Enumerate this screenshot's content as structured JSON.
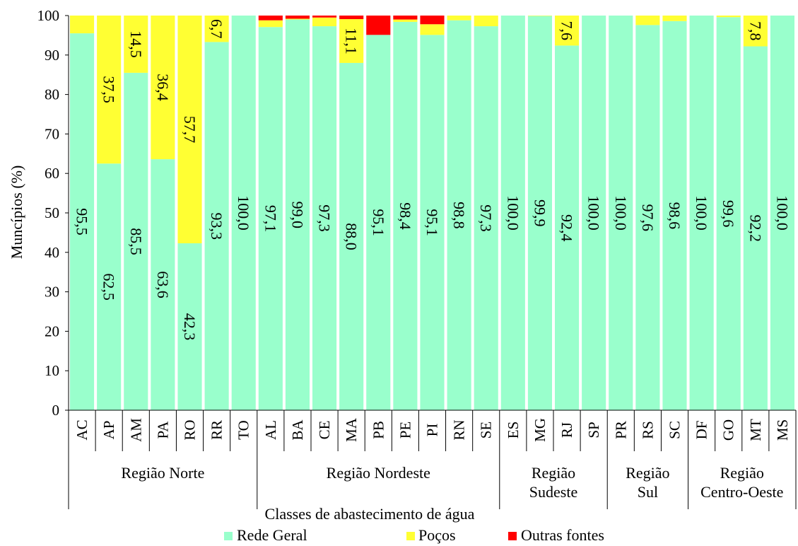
{
  "chart_data": {
    "type": "bar",
    "stacked": true,
    "ylabel": "Muncípios (%)",
    "xlabel": "Classes de abastecimento de água",
    "ylim": [
      0,
      100
    ],
    "yticks": [
      0,
      10,
      20,
      30,
      40,
      50,
      60,
      70,
      80,
      90,
      100
    ],
    "grid": false,
    "legend_position": "bottom",
    "categories": [
      "AC",
      "AP",
      "AM",
      "PA",
      "RO",
      "RR",
      "TO",
      "AL",
      "BA",
      "CE",
      "MA",
      "PB",
      "PE",
      "PI",
      "RN",
      "SE",
      "ES",
      "MG",
      "RJ",
      "SP",
      "PR",
      "RS",
      "SC",
      "DF",
      "GO",
      "MT",
      "MS"
    ],
    "groups": [
      {
        "label": "Região Norte",
        "count": 7
      },
      {
        "label": "Região Nordeste",
        "count": 9
      },
      {
        "label": "Região Sudeste",
        "count": 4
      },
      {
        "label": "Região Sul",
        "count": 3
      },
      {
        "label": "Região Centro-Oeste",
        "count": 4
      }
    ],
    "series": [
      {
        "name": "Rede Geral",
        "color": "#99FFCC",
        "values": [
          95.5,
          62.5,
          85.5,
          63.6,
          42.3,
          93.3,
          100.0,
          97.1,
          99.0,
          97.3,
          88.0,
          95.1,
          98.4,
          95.1,
          98.8,
          97.3,
          100.0,
          99.9,
          92.4,
          100.0,
          100.0,
          97.6,
          98.6,
          100.0,
          99.6,
          92.2,
          100.0
        ],
        "labels": [
          "95,5",
          "62,5",
          "85,5",
          "63,6",
          "42,3",
          "93,3",
          "100,0",
          "97,1",
          "99,0",
          "97,3",
          "88,0",
          "95,1",
          "98,4",
          "95,1",
          "98,8",
          "97,3",
          "100,0",
          "99,9",
          "92,4",
          "100,0",
          "100,0",
          "97,6",
          "98,6",
          "100,0",
          "99,6",
          "92,2",
          "100,0"
        ]
      },
      {
        "name": "Poços",
        "color": "#FFFF33",
        "values": [
          4.5,
          37.5,
          14.5,
          36.4,
          57.7,
          6.7,
          0,
          1.7,
          0.2,
          2.2,
          11.1,
          0,
          0.6,
          2.7,
          1.2,
          2.7,
          0,
          0.1,
          7.6,
          0,
          0,
          2.4,
          1.4,
          0,
          0.4,
          7.8,
          0
        ],
        "labels": [
          "",
          "37,5",
          "14,5",
          "36,4",
          "57,7",
          "6,7",
          "",
          "",
          "",
          "",
          "11,1",
          "",
          "",
          "",
          "",
          "",
          "",
          "",
          "7,6",
          "",
          "",
          "",
          "",
          "",
          "",
          "7,8",
          ""
        ]
      },
      {
        "name": "Outras fontes",
        "color": "#FF0000",
        "values": [
          0,
          0,
          0,
          0,
          0,
          0,
          0,
          1.2,
          0.8,
          0.5,
          0.9,
          4.9,
          1.0,
          2.2,
          0,
          0,
          0,
          0,
          0,
          0,
          0,
          0,
          0,
          0,
          0,
          0,
          0
        ]
      }
    ]
  }
}
